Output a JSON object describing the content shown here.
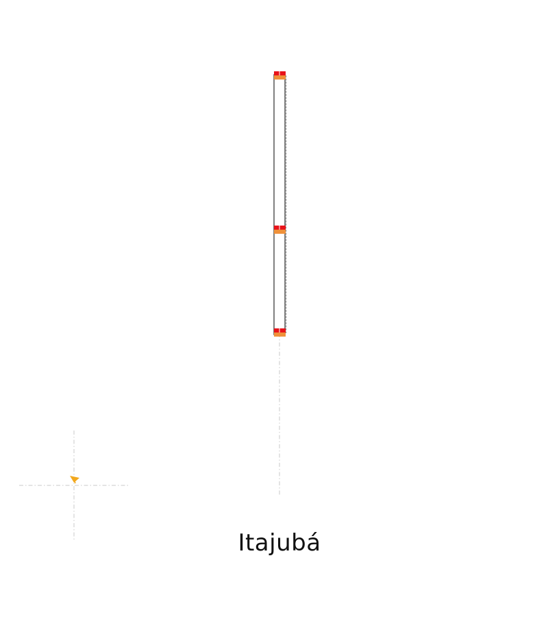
{
  "title": "Itajubá",
  "colors": {
    "background": "#ffffff",
    "track_outline": "#555555",
    "track_dashed": "#8a8a8a",
    "guide": "#d0d0d0",
    "signal_red": "#e8141b",
    "signal_orange": "#f0913a",
    "compass_orange": "#f2a81d",
    "text": "#111111"
  },
  "icons": {
    "signal": "signal-marker-icon",
    "compass": "compass-arrow-icon"
  }
}
